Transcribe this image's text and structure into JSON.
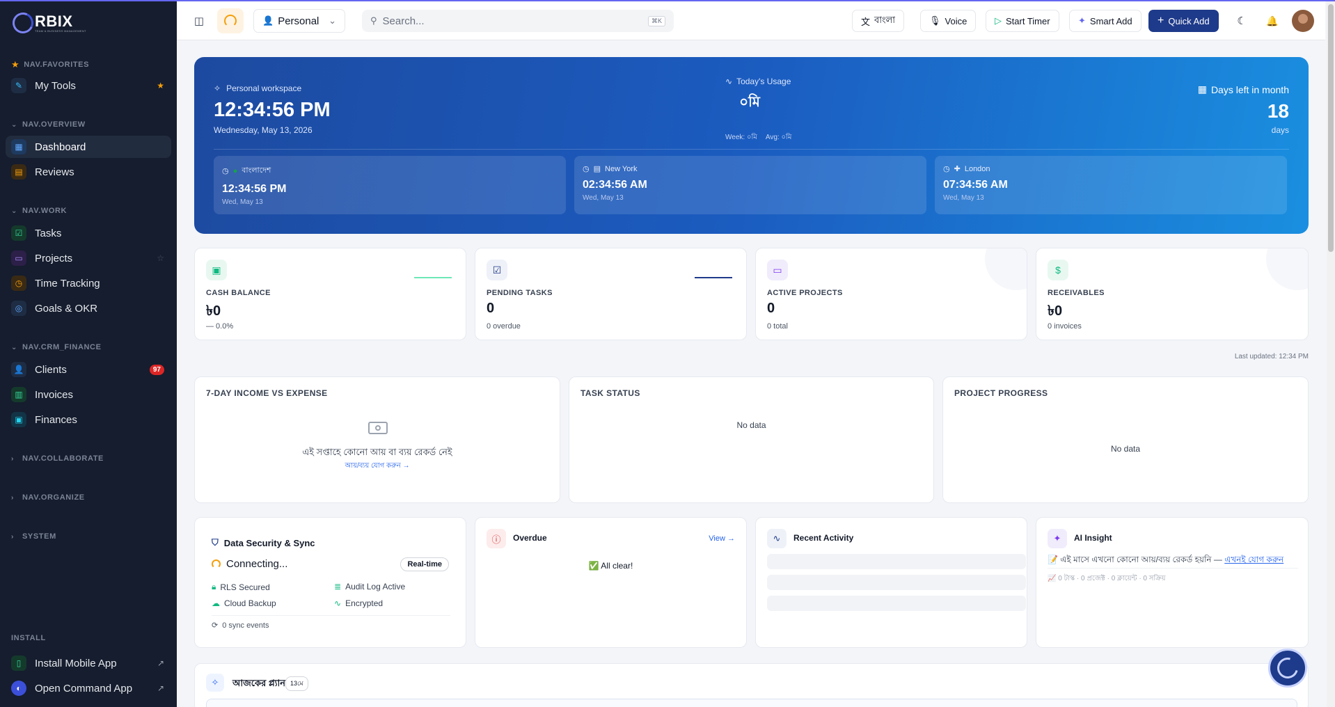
{
  "brand": {
    "name": "RBIX",
    "tagline": "TEAM & BUSINESS MANAGEMENT"
  },
  "sidebar": {
    "favorites_label": "NAV.FAVORITES",
    "favorites": [
      {
        "label": "My Tools",
        "icon": "wrench-icon"
      }
    ],
    "overview_label": "NAV.OVERVIEW",
    "overview": [
      {
        "label": "Dashboard",
        "icon": "grid-icon",
        "active": true
      },
      {
        "label": "Reviews",
        "icon": "clipboard-icon"
      }
    ],
    "work_label": "NAV.WORK",
    "work": [
      {
        "label": "Tasks",
        "icon": "check-square-icon"
      },
      {
        "label": "Projects",
        "icon": "folder-icon"
      },
      {
        "label": "Time Tracking",
        "icon": "clock-icon"
      },
      {
        "label": "Goals & OKR",
        "icon": "target-icon"
      }
    ],
    "crm_label": "NAV.CRM_FINANCE",
    "crm": [
      {
        "label": "Clients",
        "icon": "users-icon",
        "badge": "97"
      },
      {
        "label": "Invoices",
        "icon": "file-icon"
      },
      {
        "label": "Finances",
        "icon": "wallet-icon"
      }
    ],
    "collapsed_sections": [
      "NAV.COLLABORATE",
      "NAV.ORGANIZE",
      "SYSTEM"
    ],
    "install_label": "INSTALL",
    "install": [
      {
        "label": "Install Mobile App",
        "icon": "phone-icon"
      },
      {
        "label": "Open Command App",
        "icon": "command-app-icon"
      }
    ]
  },
  "topbar": {
    "workspace_select": "Personal",
    "search_placeholder": "Search...",
    "search_shortcut": "⌘K",
    "language_button": "বাংলা",
    "voice_button": "Voice",
    "start_timer_button": "Start Timer",
    "smart_add_button": "Smart Add",
    "quick_add_button": "Quick Add"
  },
  "hero": {
    "workspace_label": "Personal workspace",
    "time": "12:34:56 PM",
    "date": "Wednesday, May 13, 2026",
    "usage_label": "Today's Usage",
    "usage_value": "০মি",
    "usage_week": "Week: ০মি",
    "usage_avg": "Avg: ০মি",
    "days_left_label": "Days left in month",
    "days_left_value": "18",
    "days_unit": "days",
    "timezones": [
      {
        "label": "বাংলাদেশ",
        "time": "12:34:56 PM",
        "date": "Wed, May 13"
      },
      {
        "label": "New York",
        "time": "02:34:56 AM",
        "date": "Wed, May 13"
      },
      {
        "label": "London",
        "time": "07:34:56 AM",
        "date": "Wed, May 13"
      }
    ]
  },
  "stats": [
    {
      "label": "CASH BALANCE",
      "value": "৳0",
      "sub": "— 0.0%",
      "icon": "wallet-icon",
      "color": "#10b981"
    },
    {
      "label": "PENDING TASKS",
      "value": "0",
      "sub": "0 overdue",
      "icon": "check-square-icon",
      "color": "#1e3a8a"
    },
    {
      "label": "ACTIVE PROJECTS",
      "value": "0",
      "sub": "0 total",
      "icon": "folder-icon",
      "color": "#7c3aed"
    },
    {
      "label": "RECEIVABLES",
      "value": "৳0",
      "sub": "0 invoices",
      "icon": "dollar-icon",
      "color": "#10b981"
    }
  ],
  "last_updated": "Last updated: 12:34 PM",
  "charts": {
    "income_title": "7-DAY INCOME VS EXPENSE",
    "income_empty": "এই সপ্তাহে কোনো আয় বা ব্যয় রেকর্ড নেই",
    "income_link": "আয়/ব্যয় যোগ করুন →",
    "task_title": "TASK STATUS",
    "task_empty": "No data",
    "progress_title": "PROJECT PROGRESS",
    "progress_empty": "No data"
  },
  "security": {
    "title": "Data Security & Sync",
    "status": "Connecting...",
    "badge": "Real-time",
    "items": [
      "RLS Secured",
      "Audit Log Active",
      "Cloud Backup",
      "Encrypted"
    ],
    "sync": "0 sync events"
  },
  "overdue": {
    "title": "Overdue",
    "view": "View →",
    "message": "All clear!"
  },
  "activity": {
    "title": "Recent Activity"
  },
  "ai": {
    "title": "AI Insight",
    "text": "এই মাসে এখনো কোনো আয়/ব্যয় রেকর্ড হয়নি — ",
    "link": "এখনই যোগ করুন",
    "meta": "0 টাস্ক · 0 প্রজেক্ট · 0 ক্লায়েন্ট · 0 সক্রিয়"
  },
  "plan": {
    "title": "আজকের প্ল্যান",
    "badge": "13মে"
  }
}
